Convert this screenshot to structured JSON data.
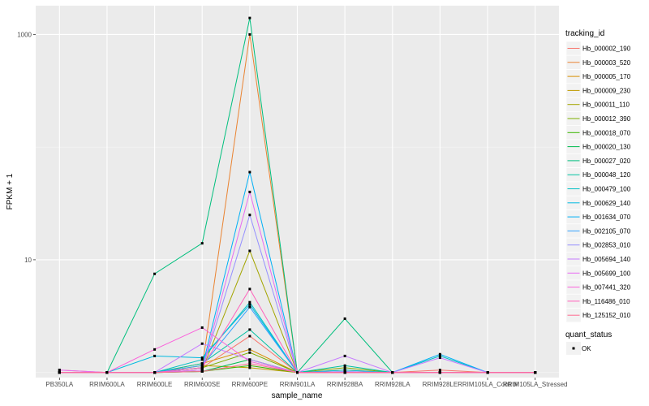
{
  "chart_data": {
    "type": "line",
    "xlabel": "sample_name",
    "ylabel": "FPKM + 1",
    "y_scale": "log10",
    "ylim": [
      0.9,
      1800
    ],
    "y_ticks": [
      10,
      1000
    ],
    "y_tick_labels": [
      "10",
      "1000"
    ],
    "grid": true,
    "categories": [
      "PB350LA",
      "RRIM600LA",
      "RRIM600LE",
      "RRIM600SE",
      "RRIM600PE",
      "RRIM901LA",
      "RRIM928BA",
      "RRIM928LA",
      "RRIM928LE",
      "RRIM105LA_Control",
      "RRIM105LA_Stressed"
    ],
    "legend_title": "tracking_id",
    "legend_position": "right",
    "shape_legend_title": "quant_status",
    "shape_legend_label": "OK",
    "series": [
      {
        "name": "Hb_000002_190",
        "color": "#F8766D",
        "values": [
          1.05,
          1,
          1,
          1.1,
          2.1,
          1,
          1.05,
          1,
          1.05,
          1,
          1
        ]
      },
      {
        "name": "Hb_000003_520",
        "color": "#EA8331",
        "values": [
          1,
          1,
          1,
          1.1,
          1000,
          1,
          1,
          1,
          1,
          1,
          1
        ]
      },
      {
        "name": "Hb_000005_170",
        "color": "#D89000",
        "values": [
          1,
          1,
          1,
          1.2,
          1.6,
          1,
          1,
          1,
          1,
          1,
          1
        ]
      },
      {
        "name": "Hb_000009_230",
        "color": "#C09B00",
        "values": [
          1,
          1,
          1,
          1.15,
          1.1,
          1,
          1,
          1,
          1,
          1,
          1
        ]
      },
      {
        "name": "Hb_000011_110",
        "color": "#A3A500",
        "values": [
          1,
          1,
          1,
          1.05,
          12,
          1,
          1,
          1,
          1,
          1,
          1
        ]
      },
      {
        "name": "Hb_000012_390",
        "color": "#7CAE00",
        "values": [
          1,
          1,
          1,
          1.1,
          1.5,
          1,
          1.1,
          1,
          1,
          1,
          1
        ]
      },
      {
        "name": "Hb_000018_070",
        "color": "#39B600",
        "values": [
          1,
          1,
          1,
          1.02,
          1.15,
          1,
          1,
          1,
          1,
          1,
          1
        ]
      },
      {
        "name": "Hb_000020_130",
        "color": "#00BB4E",
        "values": [
          1,
          1,
          1,
          1.02,
          1.3,
          1,
          1,
          1,
          1,
          1,
          1
        ]
      },
      {
        "name": "Hb_000027_020",
        "color": "#00BF7D",
        "values": [
          1,
          1,
          7.5,
          14,
          1400,
          1,
          3,
          1,
          1,
          1,
          1
        ]
      },
      {
        "name": "Hb_000048_120",
        "color": "#00C1A3",
        "values": [
          1,
          1,
          1,
          1.2,
          2.4,
          1,
          1.15,
          1,
          1,
          1,
          1
        ]
      },
      {
        "name": "Hb_000479_100",
        "color": "#00BFC4",
        "values": [
          1,
          1,
          1,
          1.3,
          4.2,
          1,
          1.05,
          1,
          1.4,
          1,
          1
        ]
      },
      {
        "name": "Hb_000629_140",
        "color": "#00BAE0",
        "values": [
          1,
          1,
          1.4,
          1.35,
          4.0,
          1,
          1,
          1,
          1,
          1,
          1
        ]
      },
      {
        "name": "Hb_001634_070",
        "color": "#00B0F6",
        "values": [
          1,
          1,
          1,
          1.1,
          60,
          1,
          1,
          1,
          1.45,
          1,
          1
        ]
      },
      {
        "name": "Hb_002105_070",
        "color": "#35A2FF",
        "values": [
          1,
          1,
          1,
          1.15,
          3.8,
          1,
          1,
          1,
          1,
          1,
          1
        ]
      },
      {
        "name": "Hb_002853_010",
        "color": "#9590FF",
        "values": [
          1,
          1,
          1,
          1.05,
          25,
          1,
          1.02,
          1,
          1,
          1,
          1
        ]
      },
      {
        "name": "Hb_005694_140",
        "color": "#C77CFF",
        "values": [
          1,
          1,
          1,
          1.8,
          1.3,
          1,
          1.4,
          1,
          1.35,
          1,
          1
        ]
      },
      {
        "name": "Hb_005699_100",
        "color": "#E76BF3",
        "values": [
          1.05,
          1,
          1,
          1.05,
          40,
          1,
          1,
          1,
          1,
          1,
          1
        ]
      },
      {
        "name": "Hb_007441_320",
        "color": "#FA62DB",
        "values": [
          1,
          1,
          1.6,
          2.5,
          1.25,
          1,
          1,
          1,
          1,
          1,
          1
        ]
      },
      {
        "name": "Hb_116486_010",
        "color": "#FF62BC",
        "values": [
          1,
          1,
          1,
          1.1,
          5.5,
          1,
          1,
          1,
          1,
          1,
          1
        ]
      },
      {
        "name": "Hb_125152_010",
        "color": "#FF6C91",
        "values": [
          1,
          1,
          1,
          1.02,
          1.2,
          1,
          1,
          1,
          1,
          1,
          1
        ]
      }
    ]
  }
}
